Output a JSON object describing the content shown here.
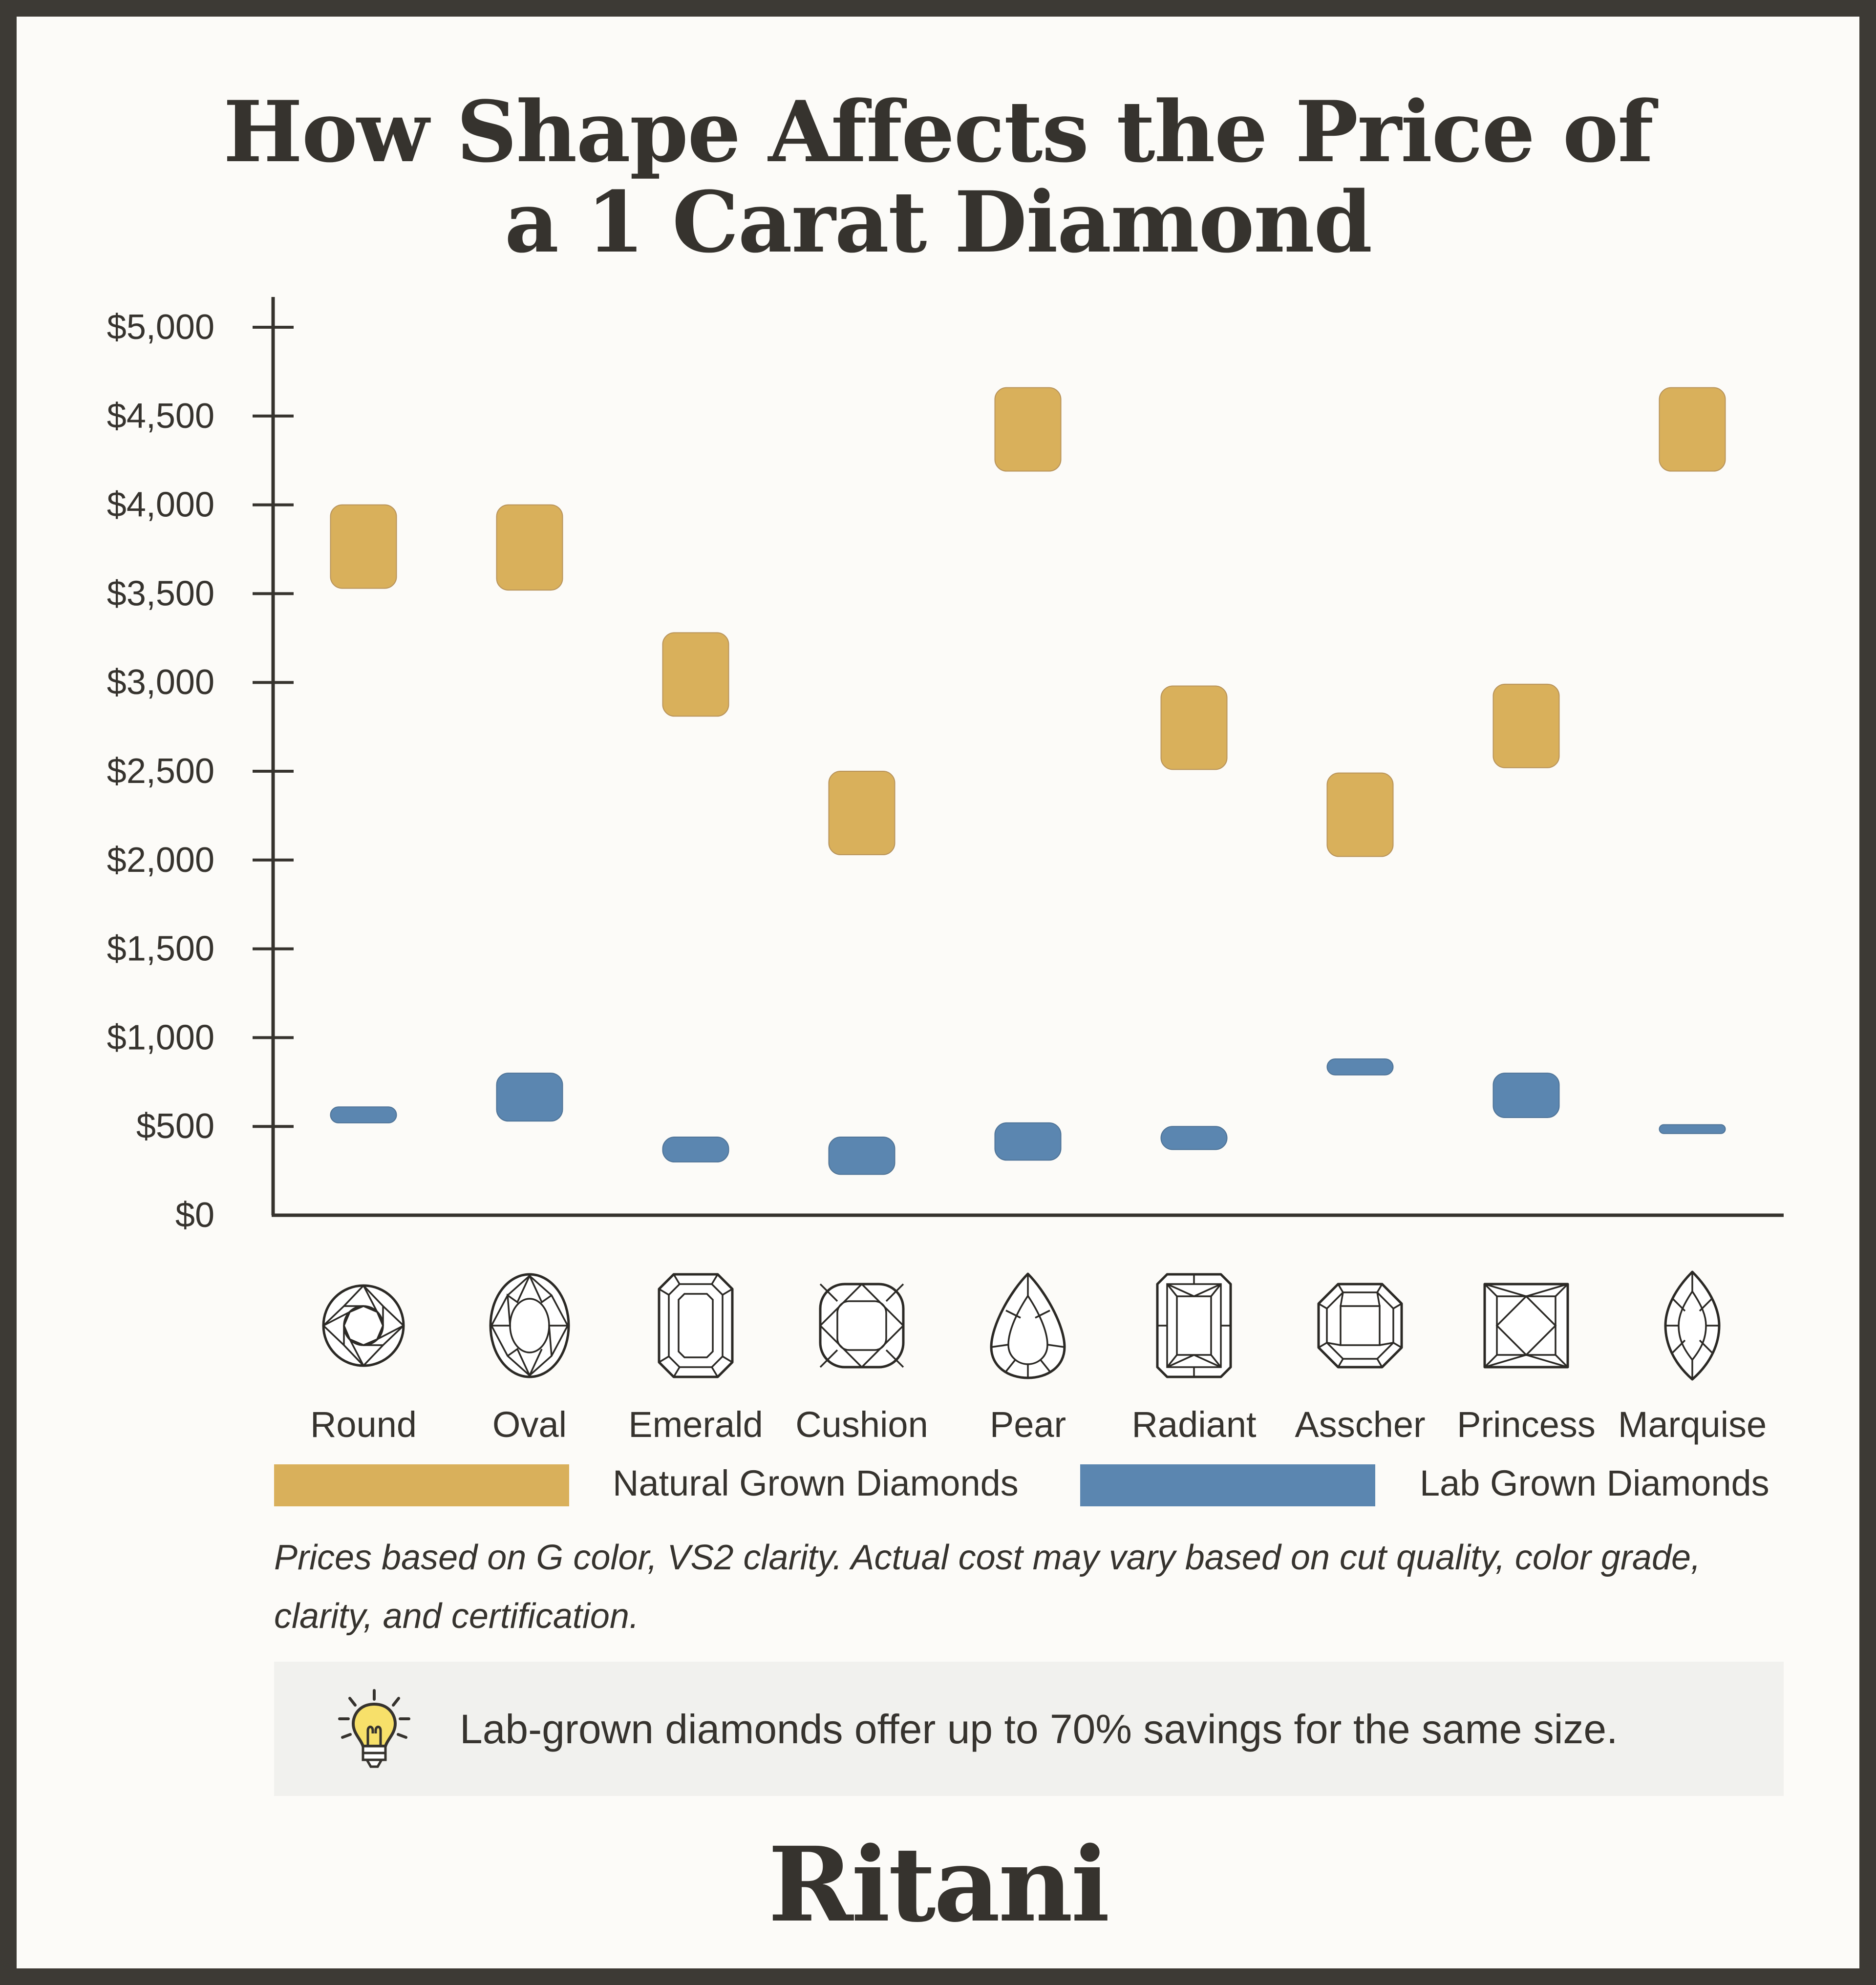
{
  "title_line1": "How Shape Affects the Price of",
  "title_line2": "a 1 Carat Diamond",
  "chart_data": {
    "type": "range-bar",
    "title": "How Shape Affects the Price of a 1 Carat Diamond",
    "ylabel": "",
    "xlabel": "",
    "ylim": [
      0,
      5000
    ],
    "yticks": [
      "$0",
      "$500",
      "$1,000",
      "$1,500",
      "$2,000",
      "$2,500",
      "$3,000",
      "$3,500",
      "$4,000",
      "$4,500",
      "$5,000"
    ],
    "categories": [
      "Round",
      "Oval",
      "Emerald",
      "Cushion",
      "Pear",
      "Radiant",
      "Asscher",
      "Princess",
      "Marquise"
    ],
    "series": [
      {
        "name": "Natural Grown Diamonds",
        "color": "#d9b05b",
        "ranges": [
          [
            3530,
            4000
          ],
          [
            3520,
            4000
          ],
          [
            2810,
            3280
          ],
          [
            2030,
            2500
          ],
          [
            4190,
            4660
          ],
          [
            2510,
            2980
          ],
          [
            2020,
            2490
          ],
          [
            2520,
            2990
          ],
          [
            4190,
            4660
          ]
        ]
      },
      {
        "name": "Lab Grown Diamonds",
        "color": "#5b86b0",
        "ranges": [
          [
            520,
            610
          ],
          [
            530,
            800
          ],
          [
            300,
            440
          ],
          [
            230,
            440
          ],
          [
            310,
            520
          ],
          [
            370,
            500
          ],
          [
            790,
            880
          ],
          [
            550,
            800
          ],
          [
            460,
            510
          ]
        ]
      }
    ],
    "legend": [
      "Natural Grown Diamonds",
      "Lab Grown Diamonds"
    ],
    "legend_position": "bottom"
  },
  "shape_icons": [
    "round-diamond-icon",
    "oval-diamond-icon",
    "emerald-diamond-icon",
    "cushion-diamond-icon",
    "pear-diamond-icon",
    "radiant-diamond-icon",
    "asscher-diamond-icon",
    "princess-diamond-icon",
    "marquise-diamond-icon"
  ],
  "legend": {
    "natural": "Natural Grown Diamonds",
    "lab": "Lab Grown Diamonds"
  },
  "note": "Prices based on G color, VS2 clarity. Actual cost may vary based on cut quality, color grade, clarity, and certification.",
  "tip": {
    "icon": "lightbulb-icon",
    "text": "Lab-grown diamonds offer up to 70% savings for the same size."
  },
  "brand": "Ritani"
}
